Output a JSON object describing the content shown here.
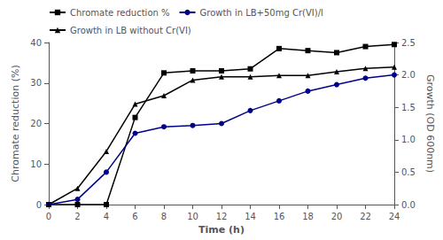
{
  "chart_data": {
    "type": "line",
    "x": [
      0,
      2,
      4,
      6,
      8,
      10,
      12,
      14,
      16,
      18,
      20,
      22,
      24
    ],
    "xlabel": "Time (h)",
    "ylabel": "Chromate reduction (%)",
    "y2label": "Growth (OD 600nm)",
    "xlim": [
      0,
      24
    ],
    "xticks": [
      0,
      2,
      4,
      6,
      8,
      10,
      12,
      14,
      16,
      18,
      20,
      22,
      24
    ],
    "ylim": [
      0,
      40
    ],
    "yticks": [
      0,
      10,
      20,
      30,
      40
    ],
    "y2lim": [
      0,
      2.5
    ],
    "y2ticks": [
      {
        "value": 0,
        "label": "0.0"
      },
      0.5,
      {
        "value": 1,
        "label": "1.0"
      },
      1.5,
      {
        "value": 2,
        "label": "2.0"
      },
      2.5
    ],
    "series": [
      {
        "name": "Chromate reduction %",
        "color": "#000000",
        "marker": "square",
        "values": [
          0,
          0,
          0,
          21.5,
          32.5,
          33.0,
          33.0,
          33.5,
          38.5,
          38.0,
          37.5,
          39.0,
          39.5
        ]
      },
      {
        "name": "Growth in LB+50mg Cr(VI)/l",
        "color": "#00008B",
        "marker": "circle",
        "axis": "y2",
        "values": [
          0,
          0.08,
          0.5,
          1.1,
          1.2,
          1.22,
          1.25,
          1.45,
          1.6,
          1.75,
          1.85,
          1.95,
          2.0
        ]
      },
      {
        "name": "Growth in LB without Cr(VI)",
        "color": "#000000",
        "marker": "triangle",
        "axis": "y2",
        "values": [
          0,
          0.25,
          0.82,
          1.55,
          1.68,
          1.92,
          1.97,
          1.97,
          1.99,
          1.99,
          2.05,
          2.1,
          2.12
        ]
      }
    ],
    "legend": "upper left",
    "grid": false
  }
}
